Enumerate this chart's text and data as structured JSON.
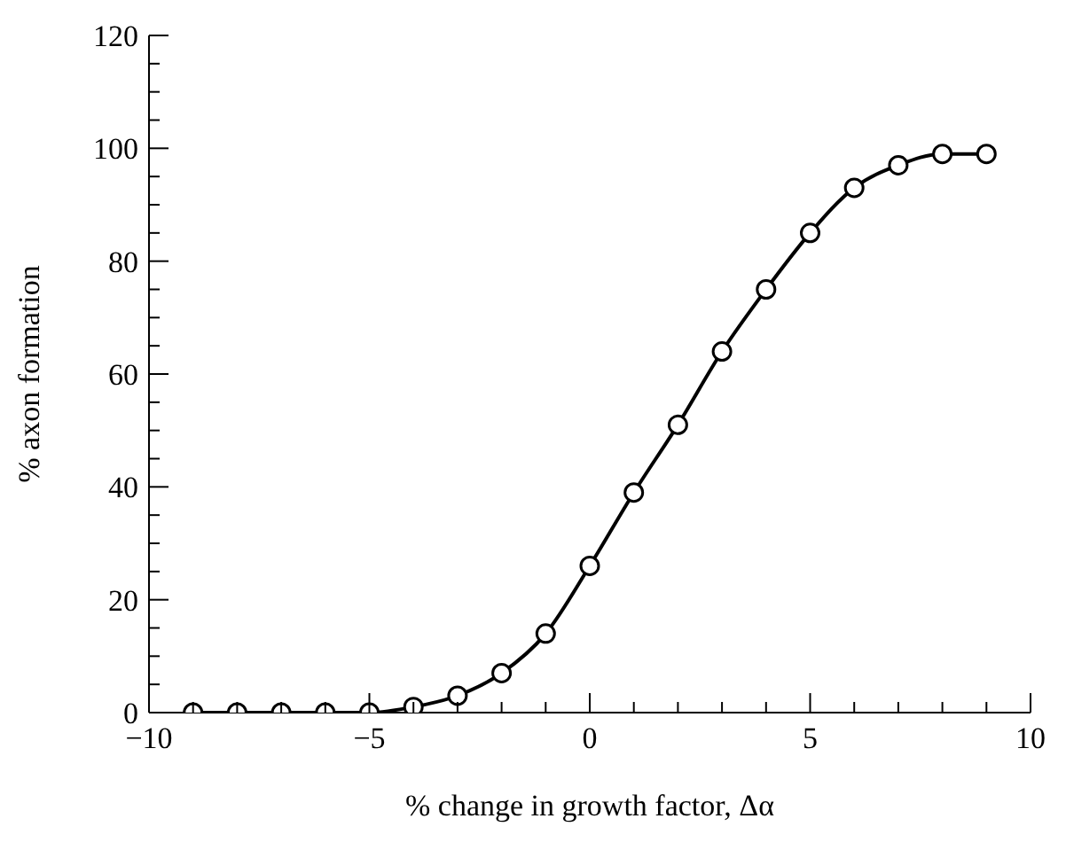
{
  "chart_data": {
    "type": "line",
    "xlabel": "% change in growth factor, Δα",
    "ylabel": "% axon formation",
    "x": [
      -9,
      -8,
      -7,
      -6,
      -5,
      -4,
      -3,
      -2,
      -1,
      0,
      1,
      2,
      3,
      4,
      5,
      6,
      7,
      8,
      9
    ],
    "series": [
      {
        "color": "#000000",
        "values": [
          0,
          0,
          0,
          0,
          0,
          1,
          3,
          7,
          14,
          26,
          39,
          51,
          64,
          75,
          85,
          93,
          97,
          99,
          99
        ]
      }
    ],
    "marker": "circle",
    "line_style": "solid",
    "grid": false,
    "legend": false,
    "xlim": [
      -10,
      10
    ],
    "xticks": [
      {
        "value": -10,
        "label": "−10"
      },
      {
        "value": -9,
        "label": null
      },
      {
        "value": -8,
        "label": null
      },
      {
        "value": -7,
        "label": null
      },
      {
        "value": -6,
        "label": null
      },
      {
        "value": -5,
        "label": "−5"
      },
      {
        "value": -4,
        "label": null
      },
      {
        "value": -3,
        "label": null
      },
      {
        "value": -2,
        "label": null
      },
      {
        "value": -1,
        "label": null
      },
      0,
      {
        "value": 1,
        "label": null
      },
      {
        "value": 2,
        "label": null
      },
      {
        "value": 3,
        "label": null
      },
      {
        "value": 4,
        "label": null
      },
      5,
      {
        "value": 6,
        "label": null
      },
      {
        "value": 7,
        "label": null
      },
      {
        "value": 8,
        "label": null
      },
      {
        "value": 9,
        "label": null
      },
      10
    ],
    "ylim": [
      0,
      120
    ],
    "yticks": [
      0,
      {
        "value": 5,
        "label": null
      },
      {
        "value": 10,
        "label": null
      },
      {
        "value": 15,
        "label": null
      },
      20,
      {
        "value": 25,
        "label": null
      },
      {
        "value": 30,
        "label": null
      },
      {
        "value": 35,
        "label": null
      },
      40,
      {
        "value": 45,
        "label": null
      },
      {
        "value": 50,
        "label": null
      },
      {
        "value": 55,
        "label": null
      },
      60,
      {
        "value": 65,
        "label": null
      },
      {
        "value": 70,
        "label": null
      },
      {
        "value": 75,
        "label": null
      },
      80,
      {
        "value": 85,
        "label": null
      },
      {
        "value": 90,
        "label": null
      },
      {
        "value": 95,
        "label": null
      },
      100,
      {
        "value": 105,
        "label": null
      },
      {
        "value": 110,
        "label": null
      },
      {
        "value": 115,
        "label": null
      },
      120
    ]
  }
}
